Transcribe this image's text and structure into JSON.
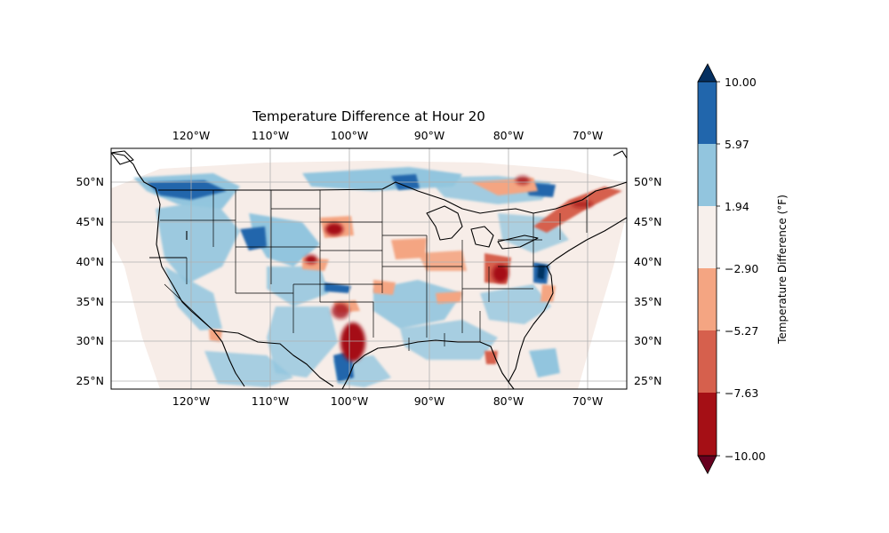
{
  "title": "Temperature Difference at Hour 20",
  "colorbar": {
    "label": "Temperature Difference (°F)",
    "tick_labels": [
      "10.00",
      "5.97",
      "1.94",
      "−2.90",
      "−5.27",
      "−7.63",
      "−10.00"
    ],
    "levels": [
      {
        "from": 5.97,
        "to": 10.0,
        "color": "#2166ac"
      },
      {
        "from": 1.94,
        "to": 5.97,
        "color": "#92c5de"
      },
      {
        "from": -2.9,
        "to": 1.94,
        "color": "#f7f0ec"
      },
      {
        "from": -5.27,
        "to": -2.9,
        "color": "#f4a582"
      },
      {
        "from": -7.63,
        "to": -5.27,
        "color": "#d6604d"
      },
      {
        "from": -10.0,
        "to": -7.63,
        "color": "#a50f15"
      }
    ],
    "extend_top_color": "#053061",
    "extend_bottom_color": "#67001f"
  },
  "map": {
    "lon_labels": [
      "120°W",
      "110°W",
      "100°W",
      "90°W",
      "80°W",
      "70°W"
    ],
    "lat_labels": [
      "50°N",
      "45°N",
      "40°N",
      "35°N",
      "30°N",
      "25°N"
    ],
    "gridlines": true,
    "features": [
      "coastlines",
      "country borders",
      "state borders"
    ]
  },
  "chart_data": {
    "type": "heatmap",
    "title": "Temperature Difference at Hour 20",
    "colorbar_label": "Temperature Difference (°F)",
    "zlim": [
      -10.0,
      10.0
    ],
    "levels": [
      -10.0,
      -7.63,
      -5.27,
      -2.9,
      1.94,
      5.97,
      10.0
    ],
    "extent": {
      "lon": [
        -130,
        -65
      ],
      "lat": [
        24,
        54
      ]
    },
    "x_ticks": [
      -120,
      -110,
      -100,
      -90,
      -80,
      -70
    ],
    "y_ticks": [
      25,
      30,
      35,
      40,
      45,
      50
    ],
    "hotspots": [
      {
        "lon": -98.5,
        "lat": 29.0,
        "value": -9
      },
      {
        "lon": -100.0,
        "lat": 32.5,
        "value": -7
      },
      {
        "lon": -101.5,
        "lat": 44.0,
        "value": -8
      },
      {
        "lon": -106.0,
        "lat": 40.5,
        "value": -8
      },
      {
        "lon": -80.5,
        "lat": 38.5,
        "value": -7
      },
      {
        "lon": -76.5,
        "lat": 38.0,
        "value": 9
      },
      {
        "lon": -79.0,
        "lat": 49.8,
        "value": -5
      },
      {
        "lon": -72.0,
        "lat": 46.5,
        "value": -5
      },
      {
        "lon": -122.0,
        "lat": 47.5,
        "value": 7
      },
      {
        "lon": -111.0,
        "lat": 44.5,
        "value": 7
      }
    ]
  }
}
